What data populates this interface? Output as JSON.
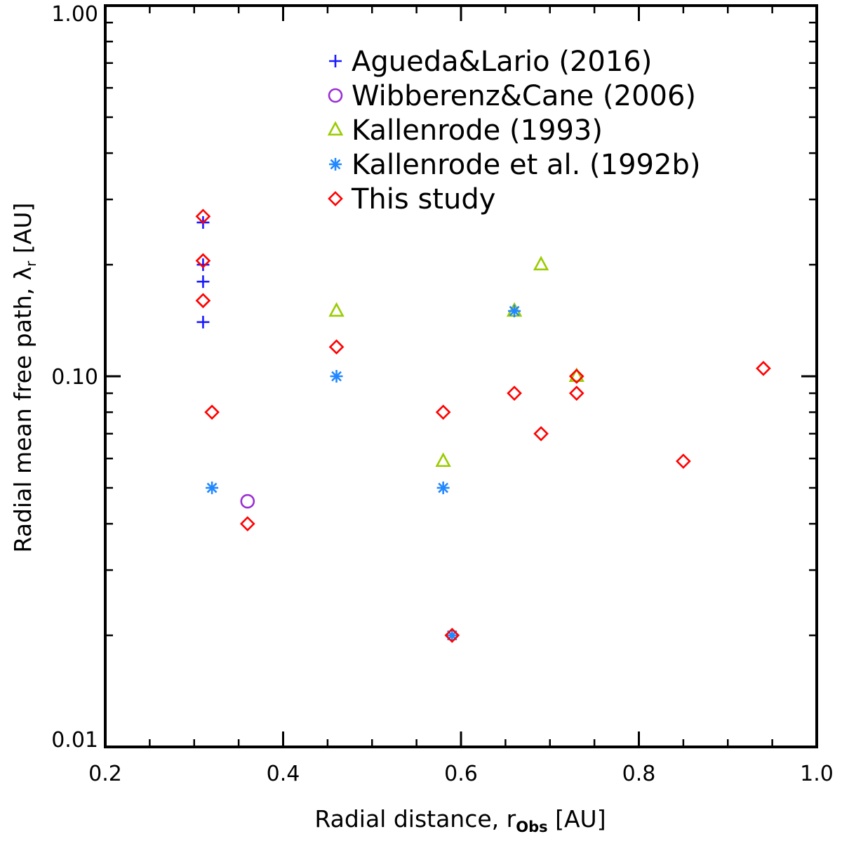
{
  "chart_data": {
    "type": "scatter",
    "xlabel": "Radial distance, r",
    "xlabel_subscript": "Obs",
    "xlabel_unit": "[AU]",
    "ylabel": "Radial mean free path, λ",
    "ylabel_subscript": "r",
    "ylabel_unit": "[AU]",
    "xlim": [
      0.2,
      1.0
    ],
    "ylim": [
      0.01,
      1.0
    ],
    "yscale": "log",
    "grid": false,
    "legend_position": "top-right",
    "x_ticks": [
      0.2,
      0.4,
      0.6,
      0.8,
      1.0
    ],
    "x_tick_labels": [
      "0.2",
      "0.4",
      "0.6",
      "0.8",
      "1.0"
    ],
    "y_ticks": [
      0.01,
      0.1,
      1.0
    ],
    "y_tick_labels": [
      "0.01",
      "0.10",
      "1.00"
    ],
    "series": [
      {
        "name": "Agueda&Lario (2016)",
        "marker": "plus",
        "color": "#1a1aff",
        "x": [
          0.31,
          0.31,
          0.31,
          0.31
        ],
        "y": [
          0.26,
          0.2,
          0.18,
          0.14
        ]
      },
      {
        "name": "Wibberenz&Cane (2006)",
        "marker": "circle",
        "color": "#9a2fd4",
        "x": [
          0.36
        ],
        "y": [
          0.046
        ]
      },
      {
        "name": "Kallenrode (1993)",
        "marker": "triangle",
        "color": "#99cc00",
        "x": [
          0.46,
          0.58,
          0.66,
          0.69,
          0.73
        ],
        "y": [
          0.15,
          0.059,
          0.15,
          0.2,
          0.1
        ]
      },
      {
        "name": "Kallenrode et al. (1992b)",
        "marker": "asterisk",
        "color": "#2288ff",
        "x": [
          0.32,
          0.46,
          0.58,
          0.59,
          0.66
        ],
        "y": [
          0.05,
          0.1,
          0.05,
          0.02,
          0.15
        ]
      },
      {
        "name": "This study",
        "marker": "diamond",
        "color": "#ff0000",
        "x": [
          0.31,
          0.31,
          0.31,
          0.32,
          0.36,
          0.46,
          0.58,
          0.59,
          0.66,
          0.69,
          0.73,
          0.73,
          0.85,
          0.94
        ],
        "y": [
          0.27,
          0.205,
          0.16,
          0.08,
          0.04,
          0.12,
          0.08,
          0.02,
          0.09,
          0.07,
          0.1,
          0.09,
          0.059,
          0.105
        ]
      }
    ]
  }
}
